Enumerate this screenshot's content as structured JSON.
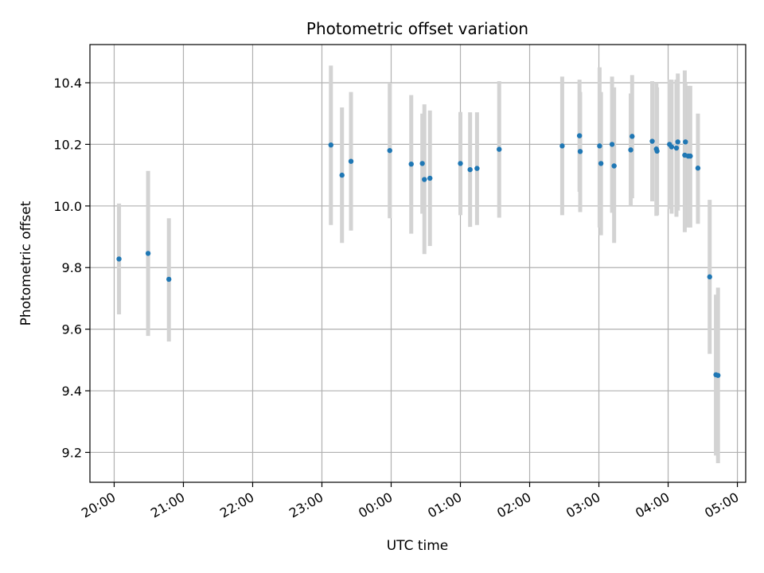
{
  "chart_data": {
    "type": "scatter",
    "title": "Photometric offset variation",
    "xlabel": "UTC time",
    "ylabel": "Photometric offset",
    "x_unit": "hours",
    "x_ticks": [
      {
        "value": 20,
        "label": "20:00"
      },
      {
        "value": 21,
        "label": "21:00"
      },
      {
        "value": 22,
        "label": "22:00"
      },
      {
        "value": 23,
        "label": "23:00"
      },
      {
        "value": 24,
        "label": "00:00"
      },
      {
        "value": 25,
        "label": "01:00"
      },
      {
        "value": 26,
        "label": "02:00"
      },
      {
        "value": 27,
        "label": "03:00"
      },
      {
        "value": 28,
        "label": "04:00"
      },
      {
        "value": 29,
        "label": "05:00"
      }
    ],
    "y_ticks": [
      {
        "value": 9.2,
        "label": "9.2"
      },
      {
        "value": 9.4,
        "label": "9.4"
      },
      {
        "value": 9.6,
        "label": "9.6"
      },
      {
        "value": 9.8,
        "label": "9.8"
      },
      {
        "value": 10.0,
        "label": "10.0"
      },
      {
        "value": 10.2,
        "label": "10.2"
      },
      {
        "value": 10.4,
        "label": "10.4"
      }
    ],
    "xlim": [
      19.65,
      29.12
    ],
    "ylim": [
      9.103,
      10.524
    ],
    "grid": true,
    "colors": {
      "point": "#1f77b4",
      "errorbar": "#d3d3d3",
      "grid": "#b0b0b0",
      "axes": "#000000"
    },
    "series": [
      {
        "points": [
          {
            "x": 20.07,
            "y": 9.828,
            "lo": 9.648,
            "hi": 10.008
          },
          {
            "x": 20.49,
            "y": 9.846,
            "lo": 9.578,
            "hi": 10.114
          },
          {
            "x": 20.79,
            "y": 9.762,
            "lo": 9.56,
            "hi": 9.96
          },
          {
            "x": 23.13,
            "y": 10.198,
            "lo": 9.938,
            "hi": 10.456
          },
          {
            "x": 23.29,
            "y": 10.1,
            "lo": 9.88,
            "hi": 10.32
          },
          {
            "x": 23.42,
            "y": 10.145,
            "lo": 9.92,
            "hi": 10.37
          },
          {
            "x": 23.98,
            "y": 10.18,
            "lo": 9.96,
            "hi": 10.4
          },
          {
            "x": 24.29,
            "y": 10.136,
            "lo": 9.91,
            "hi": 10.36
          },
          {
            "x": 24.45,
            "y": 10.138,
            "lo": 9.975,
            "hi": 10.3
          },
          {
            "x": 24.48,
            "y": 10.086,
            "lo": 9.844,
            "hi": 10.33
          },
          {
            "x": 24.56,
            "y": 10.09,
            "lo": 9.87,
            "hi": 10.31
          },
          {
            "x": 25.0,
            "y": 10.138,
            "lo": 9.97,
            "hi": 10.305
          },
          {
            "x": 25.14,
            "y": 10.118,
            "lo": 9.932,
            "hi": 10.304
          },
          {
            "x": 25.24,
            "y": 10.122,
            "lo": 9.938,
            "hi": 10.304
          },
          {
            "x": 25.56,
            "y": 10.184,
            "lo": 9.962,
            "hi": 10.405
          },
          {
            "x": 26.47,
            "y": 10.195,
            "lo": 9.97,
            "hi": 10.42
          },
          {
            "x": 26.72,
            "y": 10.228,
            "lo": 10.046,
            "hi": 10.41
          },
          {
            "x": 26.73,
            "y": 10.177,
            "lo": 9.98,
            "hi": 10.37
          },
          {
            "x": 27.01,
            "y": 10.195,
            "lo": 9.93,
            "hi": 10.45
          },
          {
            "x": 27.03,
            "y": 10.138,
            "lo": 9.905,
            "hi": 10.37
          },
          {
            "x": 27.19,
            "y": 10.2,
            "lo": 9.978,
            "hi": 10.42
          },
          {
            "x": 27.22,
            "y": 10.13,
            "lo": 9.88,
            "hi": 10.385
          },
          {
            "x": 27.46,
            "y": 10.182,
            "lo": 10.0,
            "hi": 10.365
          },
          {
            "x": 27.48,
            "y": 10.226,
            "lo": 10.025,
            "hi": 10.425
          },
          {
            "x": 27.77,
            "y": 10.21,
            "lo": 10.015,
            "hi": 10.405
          },
          {
            "x": 27.83,
            "y": 10.185,
            "lo": 9.968,
            "hi": 10.4
          },
          {
            "x": 27.84,
            "y": 10.178,
            "lo": 9.97,
            "hi": 10.385
          },
          {
            "x": 28.02,
            "y": 10.2,
            "lo": 9.99,
            "hi": 10.41
          },
          {
            "x": 28.05,
            "y": 10.192,
            "lo": 9.975,
            "hi": 10.41
          },
          {
            "x": 28.12,
            "y": 10.188,
            "lo": 9.965,
            "hi": 10.41
          },
          {
            "x": 28.14,
            "y": 10.208,
            "lo": 9.985,
            "hi": 10.43
          },
          {
            "x": 28.24,
            "y": 10.165,
            "lo": 9.915,
            "hi": 10.44
          },
          {
            "x": 28.25,
            "y": 10.208,
            "lo": 10.015,
            "hi": 10.4
          },
          {
            "x": 28.29,
            "y": 10.162,
            "lo": 9.93,
            "hi": 10.39
          },
          {
            "x": 28.32,
            "y": 10.162,
            "lo": 9.93,
            "hi": 10.39
          },
          {
            "x": 28.43,
            "y": 10.123,
            "lo": 9.942,
            "hi": 10.3
          },
          {
            "x": 28.6,
            "y": 9.77,
            "lo": 9.52,
            "hi": 10.02
          },
          {
            "x": 28.69,
            "y": 9.452,
            "lo": 9.19,
            "hi": 9.712
          },
          {
            "x": 28.72,
            "y": 9.45,
            "lo": 9.165,
            "hi": 9.735
          }
        ]
      }
    ]
  }
}
